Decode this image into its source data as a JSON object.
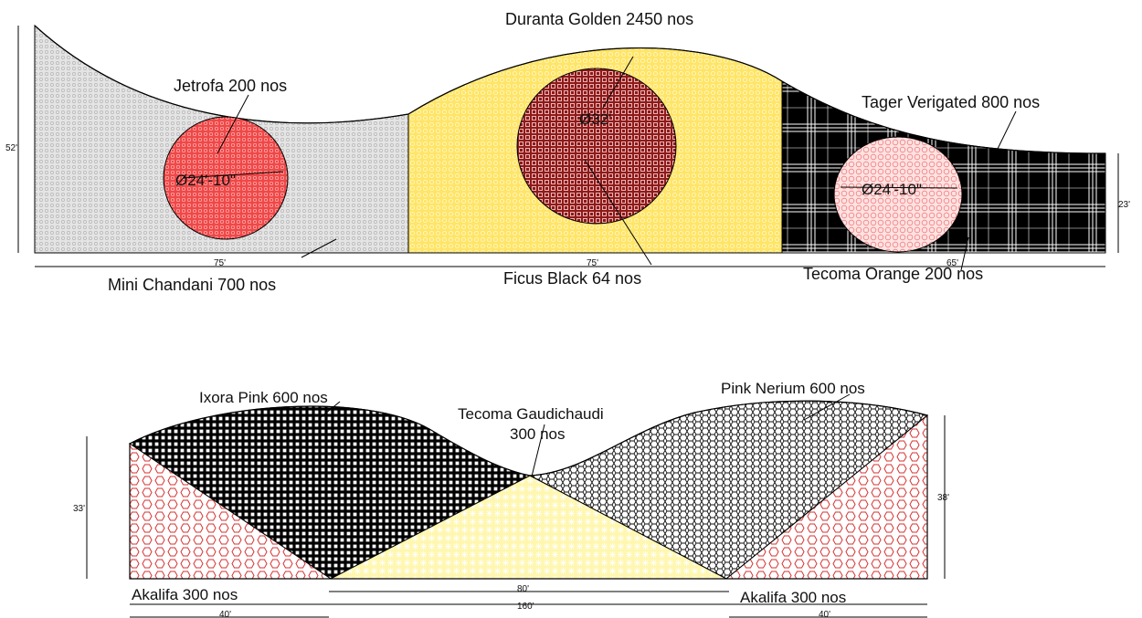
{
  "plan_top": {
    "labels": {
      "jetrofa": "Jetrofa  200 nos",
      "duranta": "Duranta Golden 2450 nos",
      "tager": "Tager Verigated 800 nos",
      "mini_chandani": "Mini Chandani  700 nos",
      "ficus": "Ficus Black  64 nos",
      "tecoma_orange": "Tecoma Orange 200 nos"
    },
    "dimensions": {
      "left_height": "52'",
      "right_height": "23'",
      "seg1_width": "75'",
      "seg2_width": "75'",
      "seg3_width": "65'",
      "circle1_dia": "Ø24'-10\"",
      "circle2_dia": "Ø32'",
      "circle3_dia": "Ø24'-10\""
    }
  },
  "plan_bottom": {
    "labels": {
      "ixora": "Ixora Pink  600 nos",
      "tecoma_g_line1": "Tecoma Gaudichaudi",
      "tecoma_g_line2": "300 nos",
      "pink_nerium": "Pink Nerium   600 nos",
      "akalifa_left": "Akalifa  300 nos",
      "akalifa_right": "Akalifa  300 nos"
    },
    "dimensions": {
      "left_height": "33'",
      "right_height": "38'",
      "center_width": "80'",
      "total_width": "160'",
      "left_width": "40'",
      "right_width": "40'"
    }
  },
  "colors": {
    "gray_fill": "#e3e3e3",
    "yellow_fill": "#ffe76a",
    "red_fill": "#e23b3b",
    "pink_fill": "#fde0e0",
    "black_fill": "#000000",
    "light_yellow": "#fff6a8"
  }
}
